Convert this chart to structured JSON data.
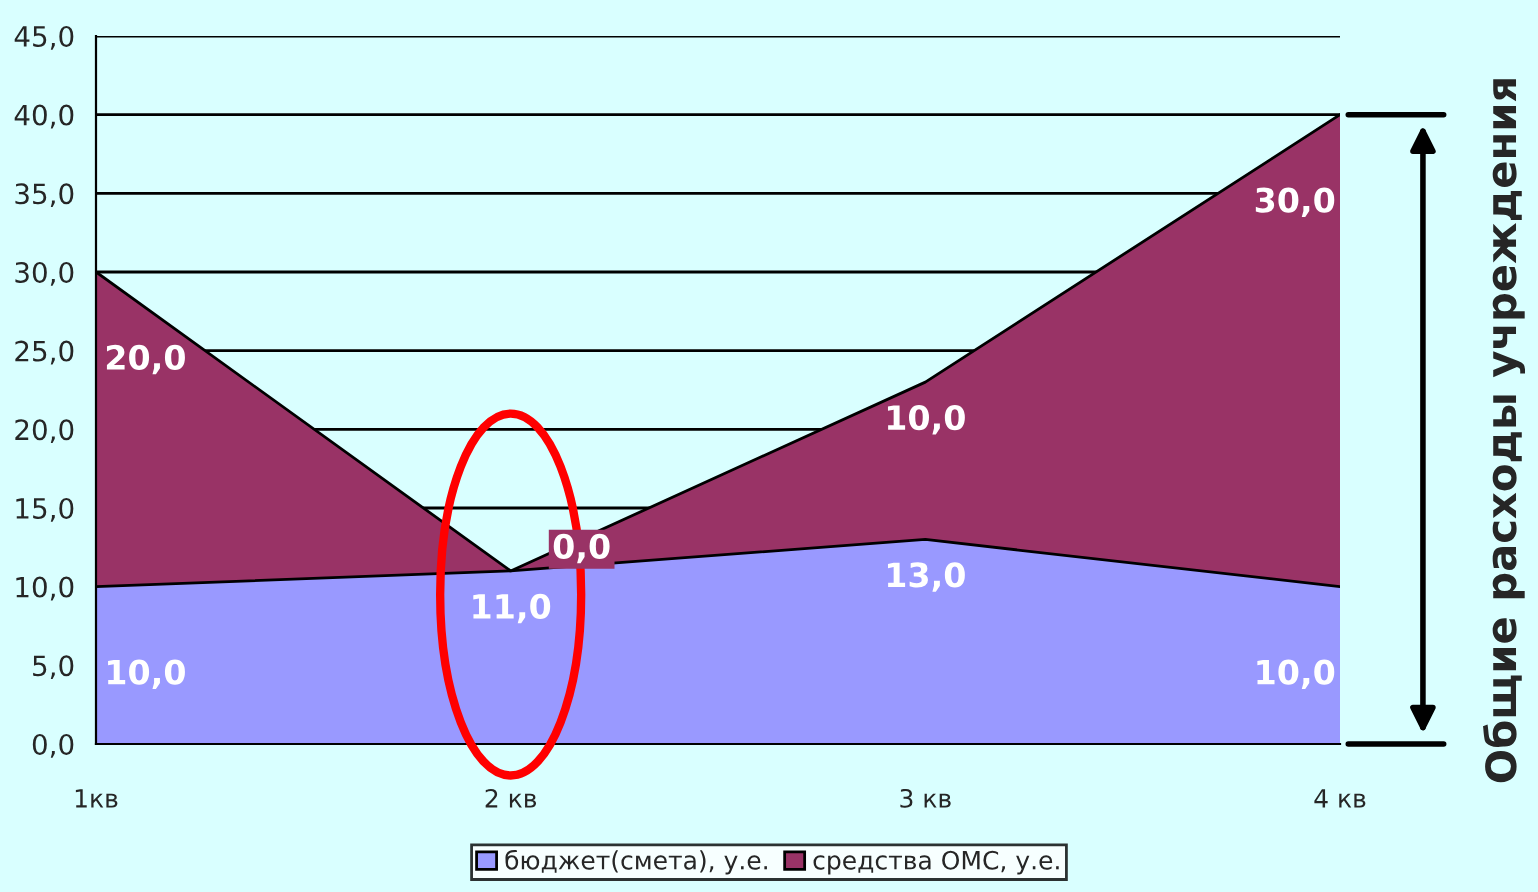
{
  "chart_data": {
    "type": "area",
    "stacked": true,
    "categories": [
      "1кв",
      "2 кв",
      "3 кв",
      "4 кв"
    ],
    "series": [
      {
        "name": "бюджет(смета), у.е.",
        "color": "#9999ff",
        "values": [
          10,
          11,
          13,
          10
        ],
        "value_labels": [
          "10,0",
          "11,0",
          "13,0",
          "10,0"
        ]
      },
      {
        "name": "средства ОМС, у.е.",
        "color": "#993366",
        "values": [
          20,
          0,
          10,
          30
        ],
        "value_labels": [
          "20,0",
          "0,0",
          "10,0",
          "30,0"
        ]
      }
    ],
    "ylim": [
      0,
      45
    ],
    "yticks": [
      {
        "value": 0,
        "label": "0,0"
      },
      {
        "value": 5,
        "label": "5,0"
      },
      {
        "value": 10,
        "label": "10,0"
      },
      {
        "value": 15,
        "label": "15,0"
      },
      {
        "value": 20,
        "label": "20,0"
      },
      {
        "value": 25,
        "label": "25,0"
      },
      {
        "value": 30,
        "label": "30,0"
      },
      {
        "value": 35,
        "label": "35,0"
      },
      {
        "value": 40,
        "label": "40,0"
      },
      {
        "value": 45,
        "label": "45,0"
      }
    ],
    "grid": "y",
    "legend": "bottom",
    "annotations": [
      "Общие расходы учреждения"
    ]
  }
}
